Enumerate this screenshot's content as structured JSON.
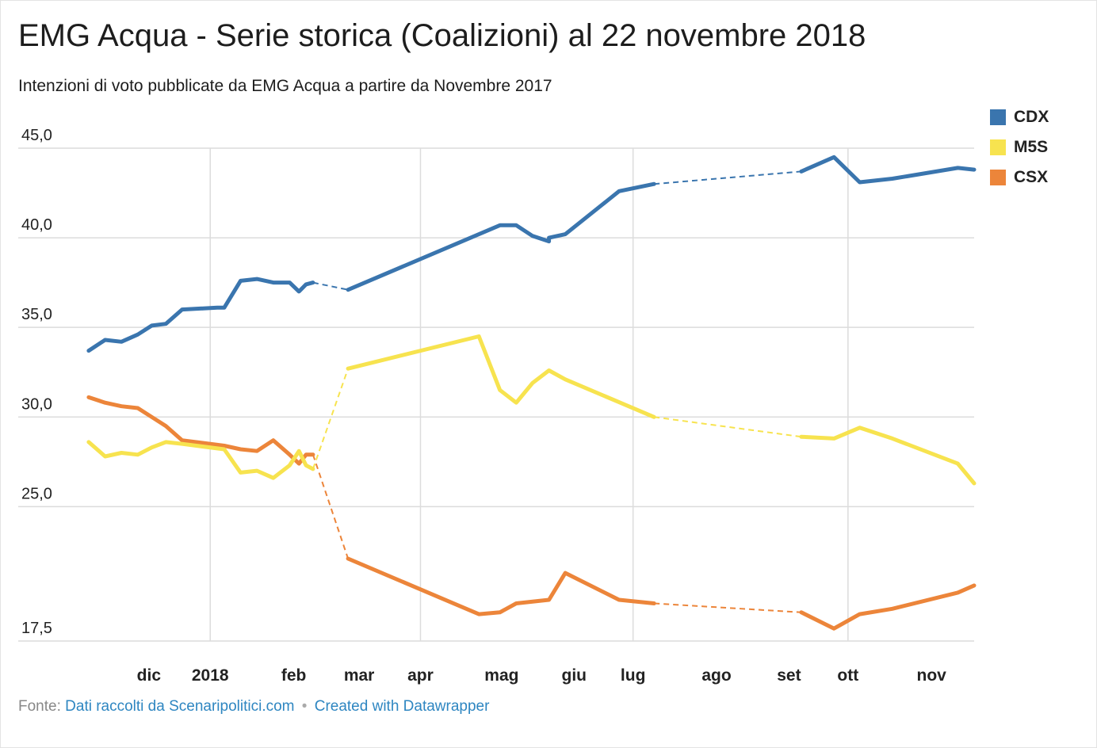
{
  "title": "EMG Acqua - Serie storica (Coalizioni) al 22 novembre 2018",
  "subtitle": "Intenzioni di voto pubblicate da EMG Acqua a partire da Novembre 2017",
  "footer": {
    "source_label": "Fonte:",
    "source_link": "Dati raccolti da Scenaripolitici.com",
    "separator": "•",
    "created_with": "Created with Datawrapper"
  },
  "colors": {
    "CDX": "#3a75ae",
    "M5S": "#f7e34f",
    "CSX": "#ec853a",
    "grid": "#dcdcdc",
    "tick_text": "#222222"
  },
  "chart_data": {
    "type": "line",
    "title": "EMG Acqua - Serie storica (Coalizioni) al 22 novembre 2018",
    "subtitle": "Intenzioni di voto pubblicate da EMG Acqua a partire da Novembre 2017",
    "xlabel": "",
    "ylabel": "",
    "ylim": [
      17.5,
      45.0
    ],
    "xlim": [
      "2017-11-09",
      "2018-11-24"
    ],
    "y_ticks": [
      17.5,
      25.0,
      30.0,
      35.0,
      40.0,
      45.0
    ],
    "y_tick_labels": [
      "17,5",
      "25,0",
      "30,0",
      "35,0",
      "40,0",
      "45,0"
    ],
    "x_ticks": [
      {
        "date": "2017-12-01",
        "label": "dic"
      },
      {
        "date": "2018-01-01",
        "label": "2018"
      },
      {
        "date": "2018-02-01",
        "label": "feb"
      },
      {
        "date": "2018-03-01",
        "label": "mar"
      },
      {
        "date": "2018-04-01",
        "label": "apr"
      },
      {
        "date": "2018-05-01",
        "label": "mag"
      },
      {
        "date": "2018-06-01",
        "label": "giu"
      },
      {
        "date": "2018-07-01",
        "label": "lug"
      },
      {
        "date": "2018-08-01",
        "label": "ago"
      },
      {
        "date": "2018-09-01",
        "label": "set"
      },
      {
        "date": "2018-10-01",
        "label": "ott"
      },
      {
        "date": "2018-11-01",
        "label": "nov"
      }
    ],
    "grid": true,
    "legend_position": "top-right",
    "series": [
      {
        "name": "CDX",
        "points": [
          {
            "x": "2017-11-10",
            "y": 33.7,
            "dashed_from_prev": false
          },
          {
            "x": "2017-11-17",
            "y": 34.3,
            "dashed_from_prev": false
          },
          {
            "x": "2017-11-24",
            "y": 34.2,
            "dashed_from_prev": false
          },
          {
            "x": "2017-12-01",
            "y": 34.6,
            "dashed_from_prev": false
          },
          {
            "x": "2017-12-07",
            "y": 35.1,
            "dashed_from_prev": false
          },
          {
            "x": "2017-12-13",
            "y": 35.2,
            "dashed_from_prev": false
          },
          {
            "x": "2017-12-20",
            "y": 36.0,
            "dashed_from_prev": false
          },
          {
            "x": "2018-01-04",
            "y": 36.1,
            "dashed_from_prev": false
          },
          {
            "x": "2018-01-07",
            "y": 36.1,
            "dashed_from_prev": false
          },
          {
            "x": "2018-01-14",
            "y": 37.6,
            "dashed_from_prev": false
          },
          {
            "x": "2018-01-21",
            "y": 37.7,
            "dashed_from_prev": false
          },
          {
            "x": "2018-01-28",
            "y": 37.5,
            "dashed_from_prev": false
          },
          {
            "x": "2018-02-04",
            "y": 37.5,
            "dashed_from_prev": false
          },
          {
            "x": "2018-02-08",
            "y": 37.0,
            "dashed_from_prev": false
          },
          {
            "x": "2018-02-11",
            "y": 37.4,
            "dashed_from_prev": false
          },
          {
            "x": "2018-02-14",
            "y": 37.5,
            "dashed_from_prev": false
          },
          {
            "x": "2018-03-01",
            "y": 37.1,
            "dashed_from_prev": true
          },
          {
            "x": "2018-05-26",
            "y": 39.8,
            "dashed_from_prev": false
          },
          {
            "x": "2018-05-05",
            "y": 40.7,
            "dashed_from_prev": false
          },
          {
            "x": "2018-05-12",
            "y": 40.7,
            "dashed_from_prev": false
          },
          {
            "x": "2018-05-19",
            "y": 40.1,
            "dashed_from_prev": false
          },
          {
            "x": "2018-05-26",
            "y": 40.0,
            "dashed_from_prev": false
          },
          {
            "x": "2018-06-02",
            "y": 40.2,
            "dashed_from_prev": false
          },
          {
            "x": "2018-06-25",
            "y": 42.6,
            "dashed_from_prev": false
          },
          {
            "x": "2018-07-10",
            "y": 43.0,
            "dashed_from_prev": false
          },
          {
            "x": "2018-09-11",
            "y": 43.7,
            "dashed_from_prev": true
          },
          {
            "x": "2018-09-25",
            "y": 44.5,
            "dashed_from_prev": false
          },
          {
            "x": "2018-10-06",
            "y": 43.1,
            "dashed_from_prev": false
          },
          {
            "x": "2018-10-20",
            "y": 43.3,
            "dashed_from_prev": false
          },
          {
            "x": "2018-11-17",
            "y": 43.9,
            "dashed_from_prev": false
          },
          {
            "x": "2018-11-24",
            "y": 43.8,
            "dashed_from_prev": false
          }
        ]
      },
      {
        "name": "M5S",
        "points": [
          {
            "x": "2017-11-10",
            "y": 28.6,
            "dashed_from_prev": false
          },
          {
            "x": "2017-11-17",
            "y": 27.8,
            "dashed_from_prev": false
          },
          {
            "x": "2017-11-24",
            "y": 28.0,
            "dashed_from_prev": false
          },
          {
            "x": "2017-12-01",
            "y": 27.9,
            "dashed_from_prev": false
          },
          {
            "x": "2017-12-07",
            "y": 28.3,
            "dashed_from_prev": false
          },
          {
            "x": "2017-12-13",
            "y": 28.6,
            "dashed_from_prev": false
          },
          {
            "x": "2017-12-20",
            "y": 28.5,
            "dashed_from_prev": false
          },
          {
            "x": "2018-01-07",
            "y": 28.2,
            "dashed_from_prev": false
          },
          {
            "x": "2018-01-14",
            "y": 26.9,
            "dashed_from_prev": false
          },
          {
            "x": "2018-01-21",
            "y": 27.0,
            "dashed_from_prev": false
          },
          {
            "x": "2018-01-28",
            "y": 26.6,
            "dashed_from_prev": false
          },
          {
            "x": "2018-02-04",
            "y": 27.3,
            "dashed_from_prev": false
          },
          {
            "x": "2018-02-08",
            "y": 28.1,
            "dashed_from_prev": false
          },
          {
            "x": "2018-02-11",
            "y": 27.3,
            "dashed_from_prev": false
          },
          {
            "x": "2018-02-14",
            "y": 27.1,
            "dashed_from_prev": false
          },
          {
            "x": "2018-03-01",
            "y": 32.7,
            "dashed_from_prev": true
          },
          {
            "x": "2018-04-26",
            "y": 34.5,
            "dashed_from_prev": false
          },
          {
            "x": "2018-05-05",
            "y": 31.5,
            "dashed_from_prev": false
          },
          {
            "x": "2018-05-12",
            "y": 30.8,
            "dashed_from_prev": false
          },
          {
            "x": "2018-05-19",
            "y": 31.9,
            "dashed_from_prev": false
          },
          {
            "x": "2018-05-26",
            "y": 32.6,
            "dashed_from_prev": false
          },
          {
            "x": "2018-06-02",
            "y": 32.1,
            "dashed_from_prev": false
          },
          {
            "x": "2018-07-10",
            "y": 30.0,
            "dashed_from_prev": false
          },
          {
            "x": "2018-09-11",
            "y": 28.9,
            "dashed_from_prev": true
          },
          {
            "x": "2018-09-25",
            "y": 28.8,
            "dashed_from_prev": false
          },
          {
            "x": "2018-10-06",
            "y": 29.4,
            "dashed_from_prev": false
          },
          {
            "x": "2018-10-20",
            "y": 28.8,
            "dashed_from_prev": false
          },
          {
            "x": "2018-11-17",
            "y": 27.4,
            "dashed_from_prev": false
          },
          {
            "x": "2018-11-24",
            "y": 26.3,
            "dashed_from_prev": false
          }
        ]
      },
      {
        "name": "CSX",
        "points": [
          {
            "x": "2017-11-10",
            "y": 31.1,
            "dashed_from_prev": false
          },
          {
            "x": "2017-11-17",
            "y": 30.8,
            "dashed_from_prev": false
          },
          {
            "x": "2017-11-24",
            "y": 30.6,
            "dashed_from_prev": false
          },
          {
            "x": "2017-12-01",
            "y": 30.5,
            "dashed_from_prev": false
          },
          {
            "x": "2017-12-07",
            "y": 30.0,
            "dashed_from_prev": false
          },
          {
            "x": "2017-12-13",
            "y": 29.5,
            "dashed_from_prev": false
          },
          {
            "x": "2017-12-20",
            "y": 28.7,
            "dashed_from_prev": false
          },
          {
            "x": "2018-01-07",
            "y": 28.4,
            "dashed_from_prev": false
          },
          {
            "x": "2018-01-14",
            "y": 28.2,
            "dashed_from_prev": false
          },
          {
            "x": "2018-01-21",
            "y": 28.1,
            "dashed_from_prev": false
          },
          {
            "x": "2018-01-28",
            "y": 28.7,
            "dashed_from_prev": false
          },
          {
            "x": "2018-02-04",
            "y": 27.9,
            "dashed_from_prev": false
          },
          {
            "x": "2018-02-08",
            "y": 27.4,
            "dashed_from_prev": false
          },
          {
            "x": "2018-02-11",
            "y": 27.9,
            "dashed_from_prev": false
          },
          {
            "x": "2018-02-14",
            "y": 27.9,
            "dashed_from_prev": false
          },
          {
            "x": "2018-03-01",
            "y": 22.1,
            "dashed_from_prev": true
          },
          {
            "x": "2018-04-26",
            "y": 19.0,
            "dashed_from_prev": false
          },
          {
            "x": "2018-05-05",
            "y": 19.1,
            "dashed_from_prev": false
          },
          {
            "x": "2018-05-12",
            "y": 19.6,
            "dashed_from_prev": false
          },
          {
            "x": "2018-05-26",
            "y": 19.8,
            "dashed_from_prev": false
          },
          {
            "x": "2018-06-02",
            "y": 21.3,
            "dashed_from_prev": false
          },
          {
            "x": "2018-06-25",
            "y": 19.8,
            "dashed_from_prev": false
          },
          {
            "x": "2018-07-10",
            "y": 19.6,
            "dashed_from_prev": false
          },
          {
            "x": "2018-09-11",
            "y": 19.1,
            "dashed_from_prev": true
          },
          {
            "x": "2018-09-25",
            "y": 18.2,
            "dashed_from_prev": false
          },
          {
            "x": "2018-10-06",
            "y": 19.0,
            "dashed_from_prev": false
          },
          {
            "x": "2018-10-20",
            "y": 19.3,
            "dashed_from_prev": false
          },
          {
            "x": "2018-11-17",
            "y": 20.2,
            "dashed_from_prev": false
          },
          {
            "x": "2018-11-24",
            "y": 20.6,
            "dashed_from_prev": false
          }
        ]
      }
    ]
  }
}
